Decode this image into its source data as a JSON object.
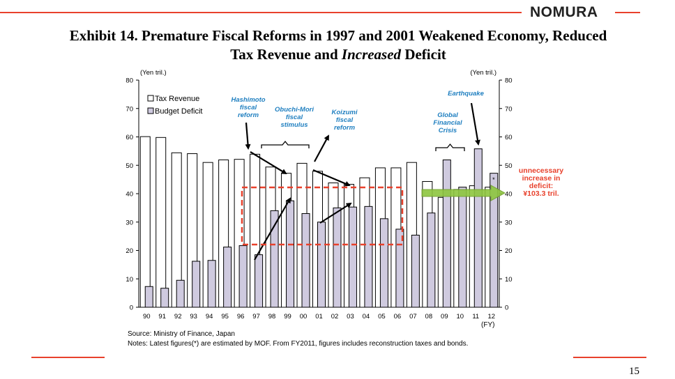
{
  "header": {
    "brand": "NOMURA",
    "title_line1": "Exhibit 14.  Premature Fiscal Reforms in 1997 and 2001 Weakened Economy, Reduced",
    "title_line2_a": "Tax Revenue and ",
    "title_line2_italic": "Increased",
    "title_line2_b": " Deficit"
  },
  "footer": {
    "source": "Source: Ministry of Finance, Japan",
    "notes": "Notes: Latest figures(*) are estimated by MOF. From FY2011,  figures includes reconstruction taxes and bonds.",
    "page_number": "15"
  },
  "colors": {
    "accent_red": "#e8412c",
    "annotation_blue": "#1f7fc0",
    "deficit_fill": "#cfcadf",
    "arrow_green": "#8dc63f"
  },
  "chart_data": {
    "type": "bar",
    "title": "Premature Fiscal Reforms in 1997 and 2001 Weakened Economy, Reduced Tax Revenue and Increased Deficit",
    "xlabel": "(FY)",
    "ylabel_left": "(Yen tril.)",
    "ylabel_right": "(Yen tril.)",
    "ylim": [
      0,
      80
    ],
    "yticks": [
      0,
      10,
      20,
      30,
      40,
      50,
      60,
      70,
      80
    ],
    "categories": [
      "90",
      "91",
      "92",
      "93",
      "94",
      "95",
      "96",
      "97",
      "98",
      "99",
      "00",
      "01",
      "02",
      "03",
      "04",
      "05",
      "06",
      "07",
      "08",
      "09",
      "10",
      "11",
      "12"
    ],
    "series": [
      {
        "name": "Tax Revenue",
        "values": [
          60.1,
          59.8,
          54.4,
          54.1,
          51.0,
          51.9,
          52.1,
          53.9,
          49.4,
          47.2,
          50.7,
          47.9,
          43.8,
          43.3,
          45.6,
          49.1,
          49.1,
          51.0,
          44.3,
          38.7,
          41.5,
          42.8,
          42.3
        ]
      },
      {
        "name": "Budget Deficit",
        "values": [
          7.3,
          6.7,
          9.5,
          16.2,
          16.5,
          21.2,
          21.7,
          18.5,
          34.0,
          37.5,
          33.0,
          30.0,
          35.0,
          35.3,
          35.5,
          31.2,
          27.5,
          25.4,
          33.2,
          51.9,
          42.3,
          55.8,
          47.2
        ]
      }
    ],
    "legend": [
      "Tax Revenue",
      "Budget Deficit"
    ],
    "annotations": {
      "hashimoto": [
        "Hashimoto",
        "fiscal",
        "reform"
      ],
      "obuchi": [
        "Obuchi-Mori",
        "fiscal",
        "stimulus"
      ],
      "koizumi": [
        "Koizumi",
        "fiscal",
        "reform"
      ],
      "gfc": [
        "Global",
        "Financial",
        "Crisis"
      ],
      "earthquake": "Earthquake",
      "unnecessary": [
        "unnecessary",
        "increase in",
        "deficit:",
        "¥103.3 tril."
      ],
      "estimate_mark": "*"
    }
  }
}
